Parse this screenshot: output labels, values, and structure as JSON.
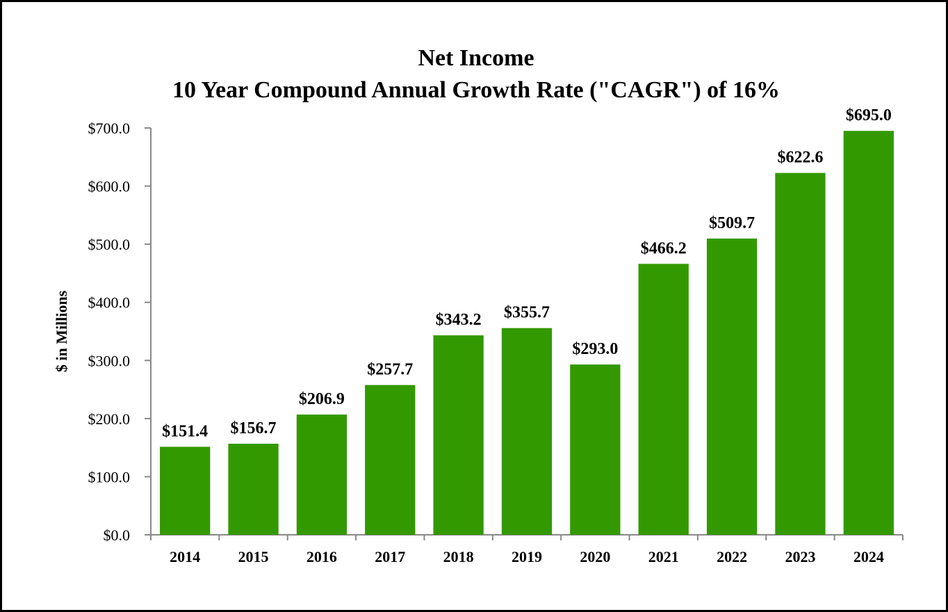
{
  "chart_data": {
    "type": "bar",
    "title": [
      "Net Income",
      "10 Year Compound Annual Growth Rate (\"CAGR\") of 16%"
    ],
    "xlabel": "",
    "ylabel": "$ in Millions",
    "categories": [
      "2014",
      "2015",
      "2016",
      "2017",
      "2018",
      "2019",
      "2020",
      "2021",
      "2022",
      "2023",
      "2024"
    ],
    "values": [
      151.4,
      156.7,
      206.9,
      257.7,
      343.2,
      355.7,
      293.0,
      466.2,
      509.7,
      622.6,
      695.0
    ],
    "data_labels": [
      "$151.4",
      "$156.7",
      "$206.9",
      "$257.7",
      "$343.2",
      "$355.7",
      "$293.0",
      "$466.2",
      "$509.7",
      "$622.6",
      "$695.0"
    ],
    "ylim": [
      0,
      700
    ],
    "yticks": [
      0,
      100,
      200,
      300,
      400,
      500,
      600,
      700
    ],
    "ytick_labels": [
      "$0.0",
      "$100.0",
      "$200.0",
      "$300.0",
      "$400.0",
      "$500.0",
      "$600.0",
      "$700.0"
    ],
    "grid": false,
    "legend": "none",
    "colors": {
      "bar": "#339900",
      "axis": "#888888",
      "text": "#000000",
      "border": "#000000"
    }
  }
}
